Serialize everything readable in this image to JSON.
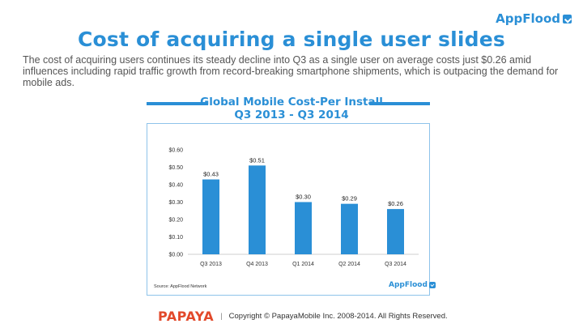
{
  "brand": {
    "appflood": "AppFlood",
    "papaya": "PAPAYA"
  },
  "title": "Cost of acquiring a single user slides",
  "description": "The cost of acquiring users continues its steady decline into Q3 as a single user on average costs just $0.26 amid influences including rapid traffic growth from record-breaking smartphone shipments, which is outpacing the demand for mobile ads.",
  "footer": {
    "copyright": "Copyright © PapayaMobile Inc. 2008-2014. All Rights Reserved."
  },
  "colors": {
    "accent": "#2a8fd6",
    "papaya": "#e2492b"
  },
  "chart_data": {
    "type": "bar",
    "title": "Global Mobile Cost-Per Install",
    "subtitle": "Q3 2013 - Q3 2014",
    "categories": [
      "Q3 2013",
      "Q4 2013",
      "Q1 2014",
      "Q2 2014",
      "Q3 2014"
    ],
    "values": [
      0.43,
      0.51,
      0.3,
      0.29,
      0.26
    ],
    "data_labels": [
      "$0.43",
      "$0.51",
      "$0.30",
      "$0.29",
      "$0.26"
    ],
    "yticks": [
      "$0.00",
      "$0.10",
      "$0.20",
      "$0.30",
      "$0.40",
      "$0.50",
      "$0.60"
    ],
    "ylim": [
      0,
      0.6
    ],
    "grid": false,
    "legend": "none",
    "source": "Source: AppFlood Network",
    "bar_color": "#2a8fd6"
  }
}
